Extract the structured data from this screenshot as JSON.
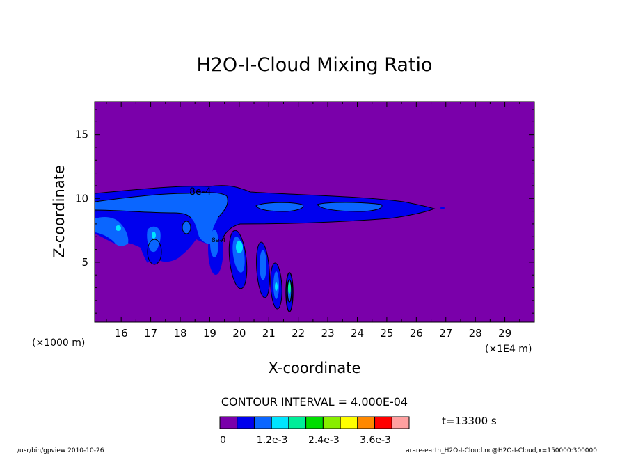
{
  "chart_data": {
    "type": "contour",
    "title": "H2O-I-Cloud Mixing Ratio",
    "xlabel": "X-coordinate",
    "ylabel": "Z-coordinate",
    "x_unit_left": "(×1000 m)",
    "x_unit_right": "(×1E4 m)",
    "x_ticks": [
      "16",
      "17",
      "18",
      "19",
      "20",
      "21",
      "22",
      "23",
      "24",
      "25",
      "26",
      "27",
      "28",
      "29"
    ],
    "y_ticks": [
      "5",
      "10",
      "15"
    ],
    "xlim": [
      15.1,
      30
    ],
    "ylim": [
      0.3,
      17.6
    ],
    "contour_interval_label": "CONTOUR INTERVAL = 4.000E-04",
    "contour_labels": [
      "8e-4",
      "8e-4"
    ],
    "time_label": "t=13300 s",
    "colorbar": {
      "colors": [
        "#7a00aa",
        "#0000ee",
        "#0a66ff",
        "#00e5ff",
        "#00ee99",
        "#00dd00",
        "#88ee00",
        "#ffff00",
        "#ff8800",
        "#ff0000",
        "#ffa0a0"
      ],
      "tick_labels": [
        "0",
        "1.2e-3",
        "2.4e-3",
        "3.6e-3"
      ]
    },
    "footer_left": "/usr/bin/gpview  2010-10-26",
    "footer_right": "arare-earth_H2O-I-Cloud.nc@H2O-I-Cloud,x=150000:300000"
  }
}
